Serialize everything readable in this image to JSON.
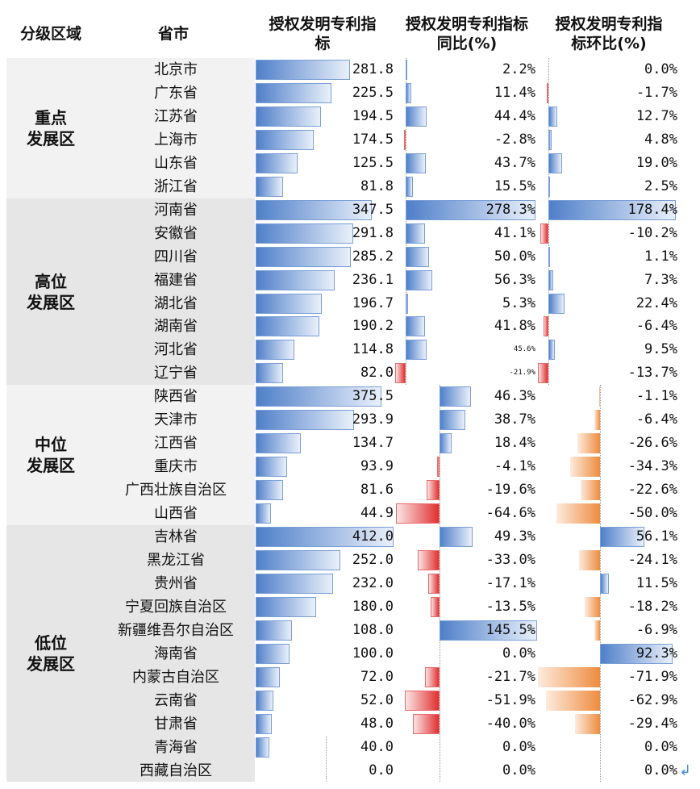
{
  "headers": {
    "region": "分级区域",
    "province": "省市",
    "index": "授权发明专利指标",
    "yoy": "授权发明专利指标同比(%)",
    "mom": "授权发明专利指标环比(%)"
  },
  "groups": [
    {
      "label": "重点发展区",
      "start": 0,
      "count": 6
    },
    {
      "label": "高位发展区",
      "start": 6,
      "count": 8
    },
    {
      "label": "中位发展区",
      "start": 14,
      "count": 6
    },
    {
      "label": "低位发展区",
      "start": 20,
      "count": 11
    }
  ],
  "return_glyph": "↲",
  "chart_data": {
    "type": "table",
    "columns": [
      "province",
      "index",
      "yoy_pct",
      "mom_pct"
    ],
    "rows": [
      {
        "province": "北京市",
        "index": 281.8,
        "yoy": 2.2,
        "mom": 0.0,
        "index_text": "281.8",
        "yoy_text": "2.2%",
        "mom_text": "0.0%"
      },
      {
        "province": "广东省",
        "index": 225.5,
        "yoy": 11.4,
        "mom": -1.7,
        "index_text": "225.5",
        "yoy_text": "11.4%",
        "mom_text": "-1.7%"
      },
      {
        "province": "江苏省",
        "index": 194.5,
        "yoy": 44.4,
        "mom": 12.7,
        "index_text": "194.5",
        "yoy_text": "44.4%",
        "mom_text": "12.7%"
      },
      {
        "province": "上海市",
        "index": 174.5,
        "yoy": -2.8,
        "mom": 4.8,
        "index_text": "174.5",
        "yoy_text": "-2.8%",
        "mom_text": "4.8%"
      },
      {
        "province": "山东省",
        "index": 125.5,
        "yoy": 43.7,
        "mom": 19.0,
        "index_text": "125.5",
        "yoy_text": "43.7%",
        "mom_text": "19.0%"
      },
      {
        "province": "浙江省",
        "index": 81.8,
        "yoy": 15.5,
        "mom": 2.5,
        "index_text": "81.8",
        "yoy_text": "15.5%",
        "mom_text": "2.5%"
      },
      {
        "province": "河南省",
        "index": 347.5,
        "yoy": 278.3,
        "mom": 178.4,
        "index_text": "347.5",
        "yoy_text": "278.3%",
        "mom_text": "178.4%"
      },
      {
        "province": "安徽省",
        "index": 291.8,
        "yoy": 41.1,
        "mom": -10.2,
        "index_text": "291.8",
        "yoy_text": "41.1%",
        "mom_text": "-10.2%"
      },
      {
        "province": "四川省",
        "index": 285.2,
        "yoy": 50.0,
        "mom": 1.1,
        "index_text": "285.2",
        "yoy_text": "50.0%",
        "mom_text": "1.1%"
      },
      {
        "province": "福建省",
        "index": 236.1,
        "yoy": 56.3,
        "mom": 7.3,
        "index_text": "236.1",
        "yoy_text": "56.3%",
        "mom_text": "7.3%"
      },
      {
        "province": "湖北省",
        "index": 196.7,
        "yoy": 5.3,
        "mom": 22.4,
        "index_text": "196.7",
        "yoy_text": "5.3%",
        "mom_text": "22.4%"
      },
      {
        "province": "湖南省",
        "index": 190.2,
        "yoy": 41.8,
        "mom": -6.4,
        "index_text": "190.2",
        "yoy_text": "41.8%",
        "mom_text": "-6.4%"
      },
      {
        "province": "河北省",
        "index": 114.8,
        "yoy": 45.6,
        "mom": 9.5,
        "index_text": "114.8",
        "yoy_text": "45.6%",
        "mom_text": "9.5%",
        "yoy_small": true
      },
      {
        "province": "辽宁省",
        "index": 82.0,
        "yoy": -21.9,
        "mom": -13.7,
        "index_text": "82.0",
        "yoy_text": "-21.9%",
        "mom_text": "-13.7%",
        "yoy_small": true
      },
      {
        "province": "陕西省",
        "index": 375.5,
        "yoy": 46.3,
        "mom": -1.1,
        "index_text": "375.5",
        "yoy_text": "46.3%",
        "mom_text": "-1.1%"
      },
      {
        "province": "天津市",
        "index": 293.9,
        "yoy": 38.7,
        "mom": -6.4,
        "index_text": "293.9",
        "yoy_text": "38.7%",
        "mom_text": "-6.4%"
      },
      {
        "province": "江西省",
        "index": 134.7,
        "yoy": 18.4,
        "mom": -26.6,
        "index_text": "134.7",
        "yoy_text": "18.4%",
        "mom_text": "-26.6%"
      },
      {
        "province": "重庆市",
        "index": 93.9,
        "yoy": -4.1,
        "mom": -34.3,
        "index_text": "93.9",
        "yoy_text": "-4.1%",
        "mom_text": "-34.3%"
      },
      {
        "province": "广西壮族自治区",
        "index": 81.6,
        "yoy": -19.6,
        "mom": -22.6,
        "index_text": "81.6",
        "yoy_text": "-19.6%",
        "mom_text": "-22.6%"
      },
      {
        "province": "山西省",
        "index": 44.9,
        "yoy": -64.6,
        "mom": -50.0,
        "index_text": "44.9",
        "yoy_text": "-64.6%",
        "mom_text": "-50.0%"
      },
      {
        "province": "吉林省",
        "index": 412.0,
        "yoy": 49.3,
        "mom": 56.1,
        "index_text": "412.0",
        "yoy_text": "49.3%",
        "mom_text": "56.1%"
      },
      {
        "province": "黑龙江省",
        "index": 252.0,
        "yoy": -33.0,
        "mom": -24.1,
        "index_text": "252.0",
        "yoy_text": "-33.0%",
        "mom_text": "-24.1%"
      },
      {
        "province": "贵州省",
        "index": 232.0,
        "yoy": -17.1,
        "mom": 11.5,
        "index_text": "232.0",
        "yoy_text": "-17.1%",
        "mom_text": "11.5%"
      },
      {
        "province": "宁夏回族自治区",
        "index": 180.0,
        "yoy": -13.5,
        "mom": -18.2,
        "index_text": "180.0",
        "yoy_text": "-13.5%",
        "mom_text": "-18.2%"
      },
      {
        "province": "新疆维吾尔自治区",
        "index": 108.0,
        "yoy": 145.5,
        "mom": -6.9,
        "index_text": "108.0",
        "yoy_text": "145.5%",
        "mom_text": "-6.9%"
      },
      {
        "province": "海南省",
        "index": 100.0,
        "yoy": 0.0,
        "mom": 92.3,
        "index_text": "100.0",
        "yoy_text": "0.0%",
        "mom_text": "92.3%"
      },
      {
        "province": "内蒙古自治区",
        "index": 72.0,
        "yoy": -21.7,
        "mom": -71.9,
        "index_text": "72.0",
        "yoy_text": "-21.7%",
        "mom_text": "-71.9%"
      },
      {
        "province": "云南省",
        "index": 52.0,
        "yoy": -51.9,
        "mom": -62.9,
        "index_text": "52.0",
        "yoy_text": "-51.9%",
        "mom_text": "-62.9%"
      },
      {
        "province": "甘肃省",
        "index": 48.0,
        "yoy": -40.0,
        "mom": -29.4,
        "index_text": "48.0",
        "yoy_text": "-40.0%",
        "mom_text": "-29.4%"
      },
      {
        "province": "青海省",
        "index": 40.0,
        "yoy": 0.0,
        "mom": 0.0,
        "index_text": "40.0",
        "yoy_text": "0.0%",
        "mom_text": "0.0%"
      },
      {
        "province": "西藏自治区",
        "index": 0.0,
        "yoy": 0.0,
        "mom": 0.0,
        "index_text": "0.0",
        "yoy_text": "0.0%",
        "mom_text": "0.0%"
      }
    ],
    "colors": {
      "positive": "#4f7fc9",
      "negative_yoy": "#e03030",
      "negative_mom": "#ee8c3f",
      "group_background_a": "#f2f2f2",
      "group_background_b": "#e6e6e6"
    }
  }
}
